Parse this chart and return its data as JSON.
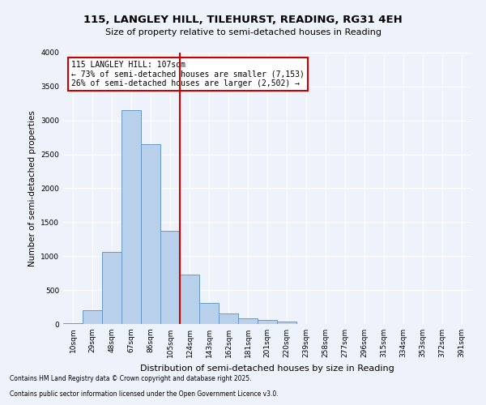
{
  "title_line1": "115, LANGLEY HILL, TILEHURST, READING, RG31 4EH",
  "title_line2": "Size of property relative to semi-detached houses in Reading",
  "xlabel": "Distribution of semi-detached houses by size in Reading",
  "ylabel": "Number of semi-detached properties",
  "categories": [
    "10sqm",
    "29sqm",
    "48sqm",
    "67sqm",
    "86sqm",
    "105sqm",
    "124sqm",
    "143sqm",
    "162sqm",
    "181sqm",
    "201sqm",
    "220sqm",
    "239sqm",
    "258sqm",
    "277sqm",
    "296sqm",
    "315sqm",
    "334sqm",
    "353sqm",
    "372sqm",
    "391sqm"
  ],
  "values": [
    10,
    200,
    1060,
    3150,
    2650,
    1370,
    730,
    310,
    160,
    80,
    55,
    35,
    5,
    5,
    2,
    2,
    1,
    0,
    0,
    0,
    0
  ],
  "bar_color": "#b8d0ea",
  "bar_edge_color": "#6699cc",
  "vline_x_idx": 5.5,
  "vline_color": "#cc0000",
  "box_edge_color": "#cc0000",
  "annotation_line1": "115 LANGLEY HILL: 107sqm",
  "annotation_line2": "← 73% of semi-detached houses are smaller (7,153)",
  "annotation_line3": "26% of semi-detached houses are larger (2,502) →",
  "ylim": [
    0,
    4000
  ],
  "yticks": [
    0,
    500,
    1000,
    1500,
    2000,
    2500,
    3000,
    3500,
    4000
  ],
  "footer_line1": "Contains HM Land Registry data © Crown copyright and database right 2025.",
  "footer_line2": "Contains public sector information licensed under the Open Government Licence v3.0.",
  "background_color": "#eef2fb",
  "plot_bg_color": "#eef2fb",
  "title1_fontsize": 9.5,
  "title2_fontsize": 8.0,
  "ylabel_fontsize": 7.5,
  "xlabel_fontsize": 8.0,
  "tick_fontsize": 6.5,
  "annot_fontsize": 7.0,
  "footer_fontsize": 5.5
}
